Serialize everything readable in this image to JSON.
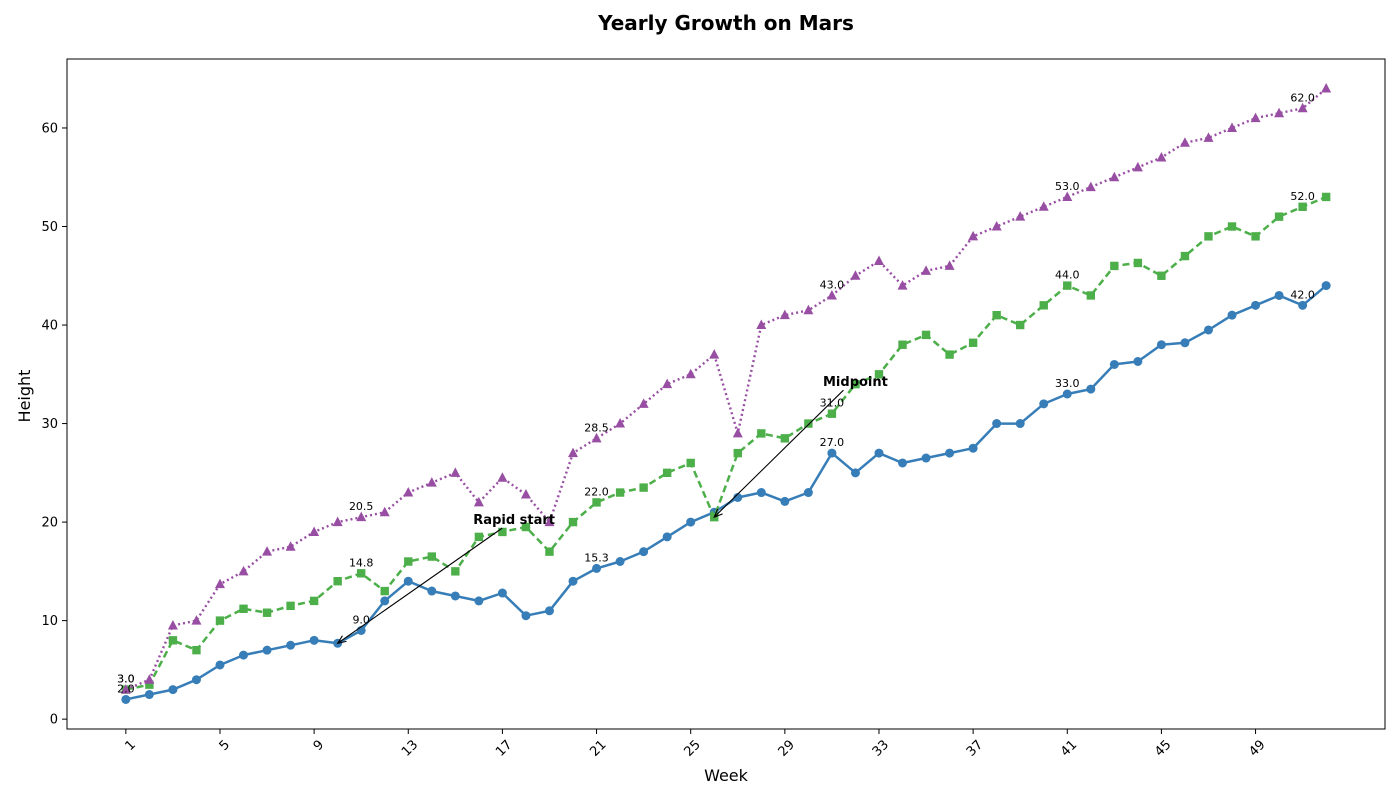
{
  "chart_data": {
    "type": "line",
    "title": "Yearly Growth on Mars",
    "xlabel": "Week",
    "ylabel": "Height",
    "xlim": [
      -1.5,
      54.5
    ],
    "ylim": [
      -1,
      67
    ],
    "xticks": [
      1,
      5,
      9,
      13,
      17,
      21,
      25,
      29,
      33,
      37,
      41,
      45,
      49
    ],
    "yticks": [
      0,
      10,
      20,
      30,
      40,
      50,
      60
    ],
    "grid": false,
    "x": [
      1,
      2,
      3,
      4,
      5,
      6,
      7,
      8,
      9,
      10,
      11,
      12,
      13,
      14,
      15,
      16,
      17,
      18,
      19,
      20,
      21,
      22,
      23,
      24,
      25,
      26,
      27,
      28,
      29,
      30,
      31,
      32,
      33,
      34,
      35,
      36,
      37,
      38,
      39,
      40,
      41,
      42,
      43,
      44,
      45,
      46,
      47,
      48,
      49,
      50,
      51,
      52
    ],
    "series": [
      {
        "color": "#377eb8",
        "line_style": "solid",
        "marker": "circle",
        "values": [
          2.0,
          2.5,
          3.0,
          4.0,
          5.5,
          6.5,
          7.0,
          7.5,
          8.0,
          7.7,
          9.0,
          12.0,
          14.0,
          13.0,
          12.5,
          12.0,
          12.8,
          10.5,
          11.0,
          14.0,
          15.3,
          16.0,
          17.0,
          18.5,
          20.0,
          21.0,
          22.5,
          23.0,
          22.1,
          23.0,
          27.0,
          25.0,
          27.0,
          26.0,
          26.5,
          27.0,
          27.5,
          30.0,
          30.0,
          32.0,
          33.0,
          33.5,
          36.0,
          36.3,
          38.0,
          38.2,
          39.5,
          41.0,
          42.0,
          43.0,
          42.0,
          44.0
        ]
      },
      {
        "color": "#4daf4a",
        "line_style": "dashed",
        "marker": "square",
        "values": [
          3.0,
          3.5,
          8.0,
          7.0,
          10.0,
          11.2,
          10.8,
          11.5,
          12.0,
          14.0,
          14.8,
          13.0,
          16.0,
          16.5,
          15.0,
          18.5,
          19.0,
          19.5,
          17.0,
          20.0,
          22.0,
          23.0,
          23.5,
          25.0,
          26.0,
          20.5,
          27.0,
          29.0,
          28.5,
          30.0,
          31.0,
          34.0,
          35.0,
          38.0,
          39.0,
          37.0,
          38.2,
          41.0,
          40.0,
          42.0,
          44.0,
          43.0,
          46.0,
          46.3,
          45.0,
          47.0,
          49.0,
          50.0,
          49.0,
          51.0,
          52.0,
          53.0
        ]
      },
      {
        "color": "#984ea3",
        "line_style": "dotted",
        "marker": "triangle",
        "values": [
          3.0,
          4.0,
          9.5,
          10.0,
          13.7,
          15.0,
          17.0,
          17.5,
          19.0,
          20.0,
          20.5,
          21.0,
          23.0,
          24.0,
          25.0,
          22.0,
          24.5,
          22.8,
          20.0,
          27.0,
          28.5,
          30.0,
          32.0,
          34.0,
          35.0,
          37.0,
          29.0,
          40.0,
          41.0,
          41.5,
          43.0,
          45.0,
          46.5,
          44.0,
          45.5,
          46.0,
          49.0,
          50.0,
          51.0,
          52.0,
          53.0,
          54.0,
          55.0,
          56.0,
          57.0,
          58.5,
          59.0,
          60.0,
          61.0,
          61.5,
          62.0,
          64.0
        ]
      }
    ],
    "point_labels": [
      {
        "series": 0,
        "x": 1,
        "text": "2.0"
      },
      {
        "series": 0,
        "x": 11,
        "text": "9.0"
      },
      {
        "series": 0,
        "x": 21,
        "text": "15.3"
      },
      {
        "series": 0,
        "x": 31,
        "text": "27.0"
      },
      {
        "series": 0,
        "x": 41,
        "text": "33.0"
      },
      {
        "series": 0,
        "x": 51,
        "text": "42.0"
      },
      {
        "series": 1,
        "x": 1,
        "text": "3.0"
      },
      {
        "series": 1,
        "x": 11,
        "text": "14.8"
      },
      {
        "series": 1,
        "x": 21,
        "text": "22.0"
      },
      {
        "series": 1,
        "x": 31,
        "text": "31.0"
      },
      {
        "series": 1,
        "x": 41,
        "text": "44.0"
      },
      {
        "series": 1,
        "x": 51,
        "text": "52.0"
      },
      {
        "series": 2,
        "x": 1,
        "text": "3.0"
      },
      {
        "series": 2,
        "x": 11,
        "text": "20.5"
      },
      {
        "series": 2,
        "x": 21,
        "text": "28.5"
      },
      {
        "series": 2,
        "x": 31,
        "text": "43.0"
      },
      {
        "series": 2,
        "x": 41,
        "text": "53.0"
      },
      {
        "series": 2,
        "x": 51,
        "text": "62.0"
      }
    ],
    "annotations": [
      {
        "text": "Rapid start",
        "text_x": 17.5,
        "text_y": 20.2,
        "arrow_x": 10.0,
        "arrow_y": 7.7
      },
      {
        "text": "Midpoint",
        "text_x": 32.0,
        "text_y": 34.2,
        "arrow_x": 26.0,
        "arrow_y": 20.5
      }
    ]
  }
}
